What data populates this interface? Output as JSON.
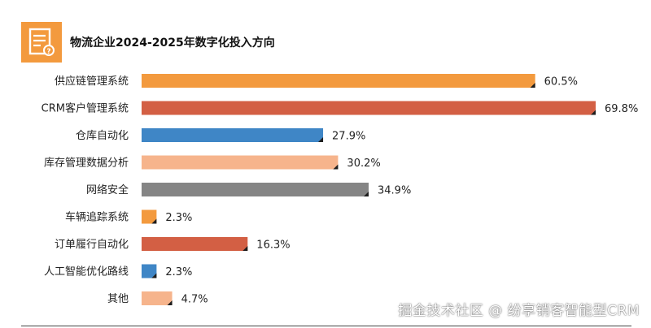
{
  "chart_data": {
    "type": "bar",
    "orientation": "horizontal",
    "title": "物流企业2024-2025年数字化投入方向",
    "categories": [
      "供应链管理系统",
      "CRM客户管理系统",
      "仓库自动化",
      "库存管理数据分析",
      "网络安全",
      "车辆追踪系统",
      "订单履行自动化",
      "人工智能优化路线",
      "其他"
    ],
    "values": [
      60.5,
      69.8,
      27.9,
      30.2,
      34.9,
      2.3,
      16.3,
      2.3,
      4.7
    ],
    "value_labels": [
      "60.5%",
      "69.8%",
      "27.9%",
      "30.2%",
      "34.9%",
      "2.3%",
      "16.3%",
      "2.3%",
      "4.7%"
    ],
    "unit": "%",
    "bar_colors": [
      "#f39a3e",
      "#d35f44",
      "#3f86c6",
      "#f6b48c",
      "#858585",
      "#f39a3e",
      "#d35f44",
      "#3f86c6",
      "#f6b48c"
    ],
    "xlim": [
      0,
      69.8
    ],
    "grid": false,
    "legend": "none"
  },
  "header": {
    "icon": "document-question-icon",
    "icon_color": "#f39a3e"
  },
  "watermark": "掘金技术社区 @ 纷享销客智能型CRM"
}
